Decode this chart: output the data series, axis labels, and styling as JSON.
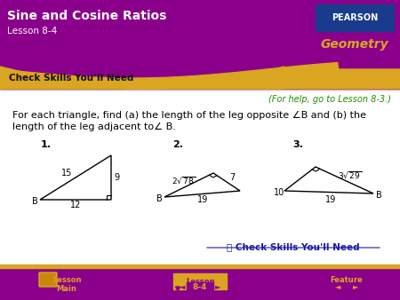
{
  "title": "Sine and Cosine Ratios",
  "subtitle": "Lesson 8-4",
  "section_label": "Check Skills You’ll Need",
  "help_text": "(For help, go to Lesson 8-3.)",
  "problem_text_line1": "For each triangle, find (a) the length of the leg opposite ∠B and (b) the",
  "problem_text_line2": "length of the leg adjacent to∠ B.",
  "header_bg": "#8B008B",
  "header_wave_color": "#DAA520",
  "footer_bg": "#8B008B",
  "footer_accent": "#DAA520",
  "pearson_bg": "#1a3a8c",
  "geometry_color": "#DAA520",
  "help_color": "#228B00",
  "link_color": "#1a1a8c",
  "body_bg": "#ffffff",
  "triangle_color": "#000000",
  "number_label_color": "#000000",
  "check_skills_color": "#1a1aaa"
}
